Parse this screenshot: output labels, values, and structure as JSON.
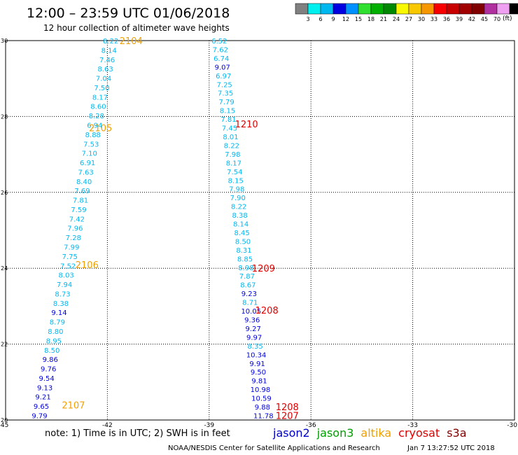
{
  "header": {
    "title": "12:00 – 23:59 UTC 01/06/2018",
    "subtitle": "12 hour collection of altimeter wave heights"
  },
  "colorbar": {
    "colors": [
      "#808080",
      "#00f0f0",
      "#00b8f0",
      "#0000e0",
      "#0090ff",
      "#30e030",
      "#00b000",
      "#008800",
      "#f8f800",
      "#f8c800",
      "#f89800",
      "#f80000",
      "#c80000",
      "#a00000",
      "#800000",
      "#b030a0",
      "#f0a0f0",
      "#000000"
    ],
    "labels": [
      "3",
      "6",
      "9",
      "12",
      "15",
      "18",
      "21",
      "24",
      "27",
      "30",
      "33",
      "36",
      "39",
      "42",
      "45",
      "70"
    ],
    "unit": "(ft)"
  },
  "footer": {
    "note": "note: 1) Time is in UTC; 2) SWH is in feet",
    "credit": "NOAA/NESDIS Center for Satellite Applications and Research",
    "timestamp": "Jan  7 13:27:52 UTC 2018",
    "satellites": [
      {
        "name": "jason2",
        "color": "#0000c8"
      },
      {
        "name": "jason3",
        "color": "#00a000"
      },
      {
        "name": "altika",
        "color": "#f0a000"
      },
      {
        "name": "cryosat",
        "color": "#e00000"
      },
      {
        "name": "s3a",
        "color": "#800000"
      }
    ]
  },
  "chart_data": {
    "type": "scatter",
    "xlim": [
      -45,
      -30
    ],
    "ylim": [
      20,
      30
    ],
    "x_ticks": [
      "-45",
      "-42",
      "-39",
      "-36",
      "-33",
      "-30"
    ],
    "y_ticks": [
      "20",
      "22",
      "24",
      "26",
      "28",
      "30"
    ],
    "grid": true,
    "track_labels": [
      {
        "text": "2104",
        "x": -41.3,
        "y": 30.0,
        "color": "#f0a000"
      },
      {
        "text": "2105",
        "x": -42.2,
        "y": 27.7,
        "color": "#f0a000"
      },
      {
        "text": "2106",
        "x": -42.6,
        "y": 24.1,
        "color": "#f0a000"
      },
      {
        "text": "2107",
        "x": -43.0,
        "y": 20.4,
        "color": "#f0a000"
      },
      {
        "text": "1210",
        "x": -37.9,
        "y": 27.8,
        "color": "#e00000"
      },
      {
        "text": "1209",
        "x": -37.4,
        "y": 24.0,
        "color": "#e00000"
      },
      {
        "text": "1208",
        "x": -37.3,
        "y": 22.9,
        "color": "#e00000"
      },
      {
        "text": "1208",
        "x": -36.7,
        "y": 20.35,
        "color": "#e00000"
      },
      {
        "text": "1207",
        "x": -36.7,
        "y": 20.12,
        "color": "#e00000"
      }
    ],
    "tracks": [
      {
        "x_top": -41.9,
        "y_top": 30.0,
        "x_bottom": -44.0,
        "y_bottom": 20.12,
        "values": [
          "8.22",
          "8.14",
          "7.46",
          "8.63",
          "7.04",
          "7.50",
          "8.17",
          "8.60",
          "8.28",
          "6.94",
          "8.88",
          "7.53",
          "7.10",
          "6.91",
          "7.63",
          "8.40",
          "7.69",
          "7.81",
          "7.59",
          "7.42",
          "7.96",
          "7.28",
          "7.99",
          "7.75",
          "7.52",
          "8.03",
          "7.94",
          "8.73",
          "8.38",
          "9.14",
          "8.79",
          "8.80",
          "8.95",
          "8.50",
          "9.86",
          "9.76",
          "9.54",
          "9.13",
          "9.21",
          "9.65",
          "9.79"
        ]
      },
      {
        "x_top": -38.7,
        "y_top": 30.0,
        "x_bottom": -37.4,
        "y_bottom": 20.12,
        "values": [
          "6.52",
          "7.62",
          "6.74",
          "9.07",
          "6.97",
          "7.25",
          "7.35",
          "7.79",
          "8.15",
          "7.81",
          "7.45",
          "8.01",
          "8.22",
          "7.98",
          "8.17",
          "7.54",
          "8.15",
          "7.98",
          "7.90",
          "8.22",
          "8.38",
          "8.14",
          "8.45",
          "8.50",
          "8.31",
          "8.85",
          "8.98",
          "7.87",
          "8.67",
          "9.23",
          "8.71",
          "10.05",
          "9.36",
          "9.27",
          "9.97",
          "8.35",
          "10.34",
          "9.91",
          "9.50",
          "9.81",
          "10.98",
          "10.59",
          "9.88",
          "11.78"
        ]
      }
    ]
  }
}
